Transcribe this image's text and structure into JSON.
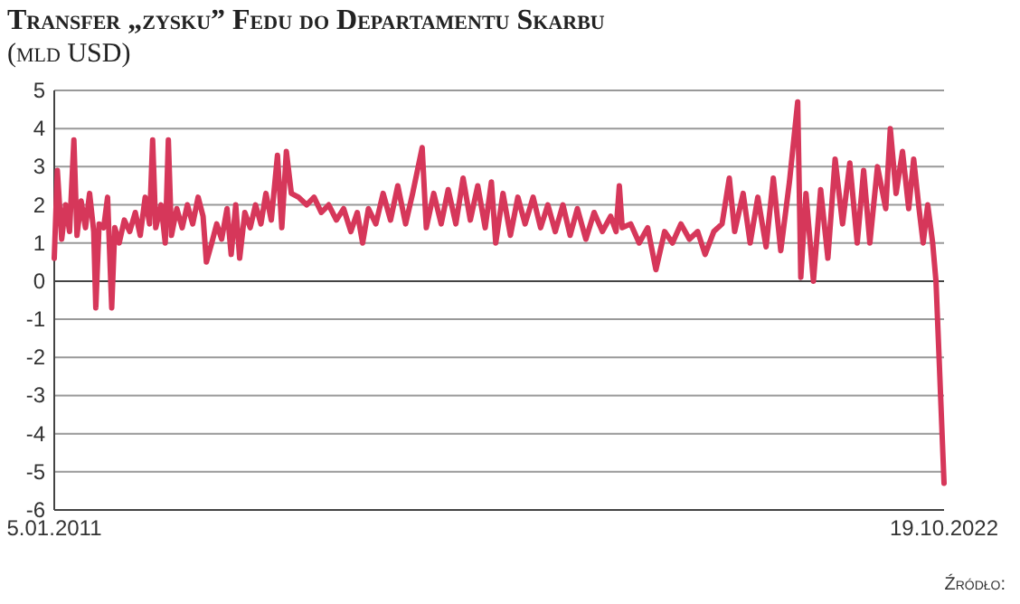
{
  "chart_data": {
    "type": "line",
    "title": "Transfer „zysku” Fedu do Departamentu Skarbu",
    "subtitle": "(mld USD)",
    "x": [
      "2011-01-05",
      "2011-01-20",
      "2011-02-10",
      "2011-03-01",
      "2011-03-20",
      "2011-04-10",
      "2011-04-25",
      "2011-05-15",
      "2011-06-05",
      "2011-06-25",
      "2011-07-15",
      "2011-07-25",
      "2011-08-10",
      "2011-09-01",
      "2011-09-20",
      "2011-10-10",
      "2011-10-25",
      "2011-11-15",
      "2011-12-10",
      "2012-01-05",
      "2012-02-01",
      "2012-02-25",
      "2012-03-20",
      "2012-04-10",
      "2012-04-25",
      "2012-05-10",
      "2012-06-05",
      "2012-06-25",
      "2012-07-10",
      "2012-07-25",
      "2012-08-20",
      "2012-09-15",
      "2012-10-10",
      "2012-11-05",
      "2012-12-01",
      "2012-12-25",
      "2013-01-10",
      "2013-02-05",
      "2013-03-01",
      "2013-03-25",
      "2013-04-20",
      "2013-05-10",
      "2013-06-01",
      "2013-06-20",
      "2013-07-15",
      "2013-08-10",
      "2013-09-05",
      "2013-10-01",
      "2013-10-25",
      "2013-11-20",
      "2013-12-20",
      "2014-01-10",
      "2014-02-01",
      "2014-02-25",
      "2014-04-01",
      "2014-05-10",
      "2014-06-15",
      "2014-07-20",
      "2014-08-25",
      "2014-10-01",
      "2014-11-05",
      "2014-12-10",
      "2015-01-10",
      "2015-02-05",
      "2015-03-05",
      "2015-04-10",
      "2015-05-15",
      "2015-06-20",
      "2015-07-25",
      "2015-09-01",
      "2015-10-05",
      "2015-11-20",
      "2015-12-10",
      "2016-01-15",
      "2016-02-20",
      "2016-03-25",
      "2016-05-01",
      "2016-06-05",
      "2016-07-10",
      "2016-08-15",
      "2016-09-20",
      "2016-10-20",
      "2016-11-10",
      "2016-12-15",
      "2017-01-20",
      "2017-02-25",
      "2017-04-01",
      "2017-05-10",
      "2017-06-15",
      "2017-07-20",
      "2017-08-25",
      "2017-10-01",
      "2017-11-05",
      "2017-12-10",
      "2018-01-20",
      "2018-03-01",
      "2018-04-10",
      "2018-05-20",
      "2018-06-15",
      "2018-07-01",
      "2018-07-15",
      "2018-08-25",
      "2018-10-05",
      "2018-11-15",
      "2018-12-25",
      "2019-02-05",
      "2019-03-15",
      "2019-04-25",
      "2019-06-05",
      "2019-07-15",
      "2019-08-20",
      "2019-10-01",
      "2019-11-10",
      "2019-12-15",
      "2020-01-10",
      "2020-02-20",
      "2020-03-25",
      "2020-05-01",
      "2020-06-10",
      "2020-07-15",
      "2020-08-20",
      "2020-10-01",
      "2020-11-10",
      "2020-11-25",
      "2020-12-20",
      "2021-01-25",
      "2021-03-01",
      "2021-04-05",
      "2021-05-10",
      "2021-06-15",
      "2021-07-20",
      "2021-08-25",
      "2021-09-25",
      "2021-10-25",
      "2021-12-01",
      "2022-01-10",
      "2022-02-01",
      "2022-03-01",
      "2022-04-01",
      "2022-05-01",
      "2022-05-25",
      "2022-06-20",
      "2022-07-10",
      "2022-08-01",
      "2022-08-25",
      "2022-09-10",
      "2022-09-25",
      "2022-10-19"
    ],
    "series": [
      {
        "color": "#d6375a",
        "values": [
          0.6,
          2.9,
          1.1,
          2.0,
          1.3,
          3.7,
          1.2,
          2.1,
          1.4,
          2.3,
          1.3,
          -0.7,
          1.5,
          1.4,
          2.2,
          -0.7,
          1.4,
          1.0,
          1.6,
          1.3,
          1.8,
          1.2,
          2.2,
          1.5,
          3.7,
          1.4,
          2.0,
          1.0,
          3.7,
          1.2,
          1.9,
          1.4,
          2.0,
          1.5,
          2.2,
          1.7,
          0.5,
          1.0,
          1.5,
          1.1,
          1.9,
          0.7,
          2.0,
          0.6,
          1.8,
          1.4,
          2.0,
          1.5,
          2.3,
          1.6,
          3.3,
          1.4,
          3.4,
          2.3,
          2.2,
          2.0,
          2.2,
          1.8,
          2.0,
          1.6,
          1.9,
          1.3,
          1.8,
          1.0,
          1.9,
          1.5,
          2.3,
          1.6,
          2.5,
          1.5,
          2.3,
          3.5,
          1.4,
          2.3,
          1.5,
          2.4,
          1.5,
          2.7,
          1.6,
          2.5,
          1.4,
          2.6,
          1.0,
          2.3,
          1.2,
          2.2,
          1.5,
          2.2,
          1.4,
          2.0,
          1.3,
          2.0,
          1.2,
          1.9,
          1.1,
          1.8,
          1.3,
          1.7,
          1.3,
          2.5,
          1.4,
          1.5,
          1.0,
          1.4,
          0.3,
          1.3,
          1.0,
          1.5,
          1.1,
          1.3,
          0.7,
          1.3,
          1.5,
          2.7,
          1.3,
          2.3,
          1.0,
          2.2,
          0.9,
          2.7,
          0.8,
          2.6,
          4.7,
          0.1,
          2.3,
          0.0,
          2.4,
          0.6,
          3.2,
          1.5,
          3.1,
          1.0,
          2.9,
          1.0,
          3.0,
          1.9,
          4.0,
          2.3,
          3.4,
          1.9,
          3.2,
          1.9,
          1.0,
          2.0,
          1.0,
          0.0,
          -2.0,
          -5.3
        ]
      }
    ],
    "xlim": [
      "2011-01-05",
      "2022-10-19"
    ],
    "xticks": [
      {
        "value": "2011-01-05",
        "label": "5.01.2011"
      },
      {
        "value": "2022-10-19",
        "label": "19.10.2022"
      }
    ],
    "ylim": [
      -6,
      5
    ],
    "yticks": [
      -6,
      -5,
      -4,
      -3,
      -2,
      -1,
      0,
      1,
      2,
      3,
      4,
      5
    ],
    "grid": "y",
    "line_style": "solid",
    "marker": "none",
    "annotations": [
      "Źródło:"
    ]
  }
}
